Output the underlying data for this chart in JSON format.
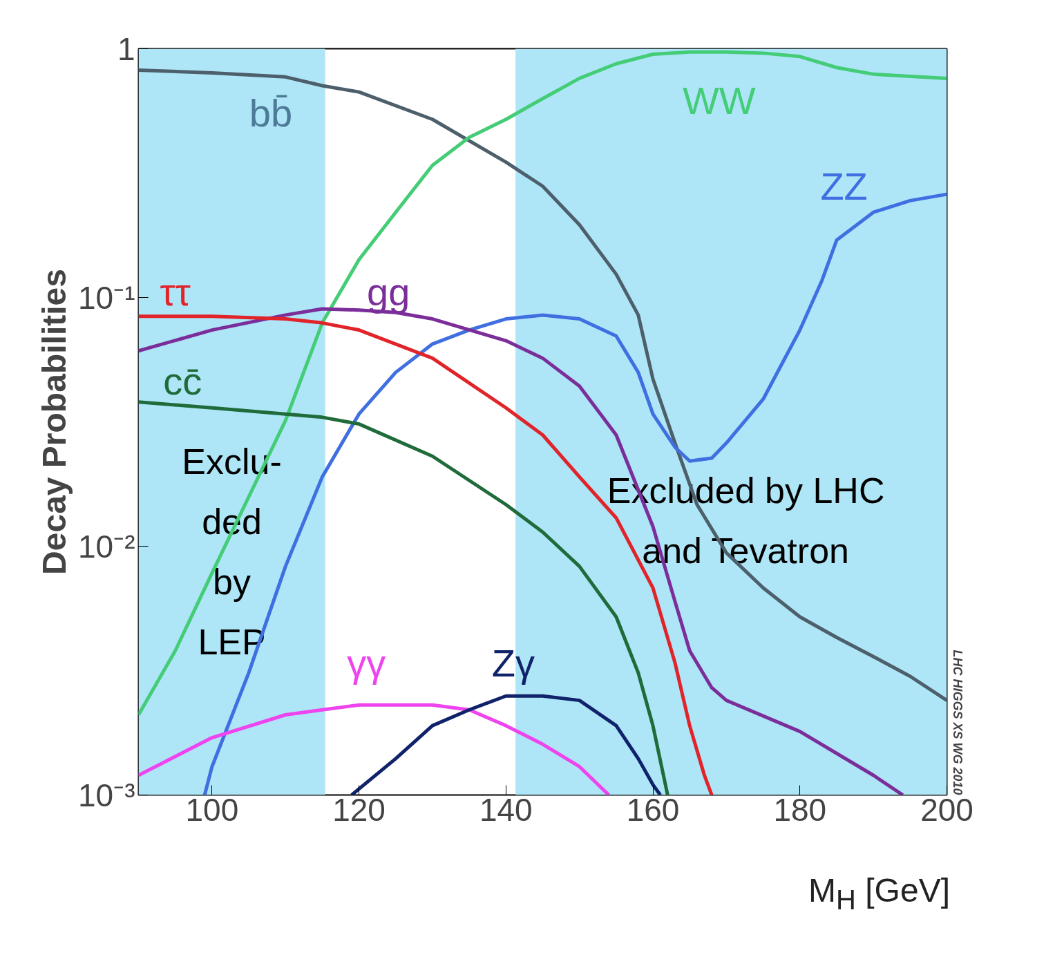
{
  "chart_data": {
    "type": "line",
    "ylabel": "Decay Probabilities",
    "xlabel": "M$_{H}$ [GeV]",
    "log": "y",
    "grid": false,
    "legend": false,
    "marker": "none",
    "line_style": "solid",
    "xlim": [
      90,
      200
    ],
    "xticks": [
      100,
      120,
      140,
      160,
      180,
      200
    ],
    "ylim": [
      0.001,
      1
    ],
    "yticks": [
      {
        "value": 0.001,
        "label": "10⁻³"
      },
      {
        "value": 0.01,
        "label": "10⁻²"
      },
      {
        "value": 0.1,
        "label": "10⁻¹"
      },
      1
    ],
    "bands": [
      {
        "axis": "x",
        "from": 90,
        "to": 115.4,
        "label": "Exclu-\nded\nby\nLEP",
        "color": "#aee6f8"
      },
      {
        "axis": "x",
        "from": 141.3,
        "to": 200,
        "label": "Excluded by LHC\nand Tevatron",
        "color": "#aee6f8"
      }
    ],
    "annotations": [
      "LHC HIGGS XS WG 2010"
    ],
    "series": [
      {
        "name": "bb̄",
        "color": "#4d5f6a",
        "x": [
          90,
          100,
          110,
          115,
          120,
          130,
          140,
          145,
          150,
          155,
          158,
          160,
          163,
          166,
          170,
          175,
          180,
          185,
          190,
          195,
          200
        ],
        "values": [
          0.82,
          0.8,
          0.77,
          0.71,
          0.67,
          0.52,
          0.35,
          0.28,
          0.196,
          0.124,
          0.085,
          0.047,
          0.026,
          0.0147,
          0.0094,
          0.0068,
          0.0052,
          0.0043,
          0.0036,
          0.003,
          0.0024
        ]
      },
      {
        "name": "WW",
        "color": "#44cc77",
        "x": [
          90,
          95,
          100,
          105,
          110,
          115,
          120,
          125,
          130,
          135,
          140,
          145,
          150,
          155,
          160,
          165,
          170,
          175,
          180,
          185,
          190,
          200
        ],
        "values": [
          0.0021,
          0.0038,
          0.0078,
          0.0158,
          0.032,
          0.079,
          0.142,
          0.22,
          0.34,
          0.44,
          0.52,
          0.63,
          0.76,
          0.87,
          0.95,
          0.97,
          0.97,
          0.96,
          0.93,
          0.84,
          0.79,
          0.76
        ]
      },
      {
        "name": "ZZ",
        "color": "#3f6fe0",
        "x": [
          99,
          100,
          105,
          110,
          115,
          120,
          125,
          130,
          135,
          140,
          145,
          150,
          155,
          158,
          160,
          163,
          165,
          168,
          170,
          175,
          180,
          183,
          185,
          190,
          195,
          200
        ],
        "values": [
          0.001,
          0.0013,
          0.0031,
          0.0083,
          0.019,
          0.034,
          0.05,
          0.065,
          0.074,
          0.082,
          0.085,
          0.082,
          0.07,
          0.05,
          0.034,
          0.025,
          0.022,
          0.0226,
          0.026,
          0.039,
          0.074,
          0.117,
          0.17,
          0.22,
          0.245,
          0.26
        ]
      },
      {
        "name": "gg",
        "color": "#7b2e9a",
        "x": [
          90,
          100,
          110,
          115,
          120,
          125,
          130,
          140,
          145,
          150,
          155,
          160,
          163,
          165,
          168,
          170,
          180,
          190,
          194
        ],
        "values": [
          0.061,
          0.074,
          0.085,
          0.09,
          0.089,
          0.087,
          0.082,
          0.067,
          0.057,
          0.044,
          0.028,
          0.012,
          0.006,
          0.0038,
          0.0027,
          0.0024,
          0.0018,
          0.0012,
          0.001
        ]
      },
      {
        "name": "ττ",
        "color": "#e0242a",
        "x": [
          90,
          100,
          110,
          115,
          120,
          130,
          140,
          145,
          150,
          155,
          160,
          163,
          165,
          167,
          168
        ],
        "values": [
          0.084,
          0.084,
          0.082,
          0.079,
          0.074,
          0.057,
          0.036,
          0.028,
          0.019,
          0.013,
          0.0068,
          0.0034,
          0.0019,
          0.0012,
          0.001
        ]
      },
      {
        "name": "cc̄",
        "color": "#1f6b3a",
        "x": [
          90,
          100,
          110,
          115,
          120,
          130,
          140,
          145,
          150,
          155,
          158,
          160,
          162
        ],
        "values": [
          0.038,
          0.036,
          0.034,
          0.033,
          0.031,
          0.023,
          0.0147,
          0.0114,
          0.0083,
          0.0052,
          0.0031,
          0.0019,
          0.001
        ]
      },
      {
        "name": "γγ",
        "color": "#ee44ee",
        "x": [
          90,
          100,
          110,
          115,
          120,
          125,
          130,
          135,
          140,
          145,
          150,
          154
        ],
        "values": [
          0.0012,
          0.0017,
          0.0021,
          0.0022,
          0.0023,
          0.0023,
          0.0023,
          0.0022,
          0.0019,
          0.0016,
          0.0013,
          0.001
        ]
      },
      {
        "name": "Zγ",
        "color": "#10226a",
        "x": [
          119,
          125,
          130,
          135,
          140,
          145,
          150,
          155,
          158,
          160,
          161
        ],
        "values": [
          0.001,
          0.0014,
          0.0019,
          0.0022,
          0.0025,
          0.0025,
          0.0024,
          0.0019,
          0.0014,
          0.0011,
          0.001
        ]
      }
    ]
  }
}
